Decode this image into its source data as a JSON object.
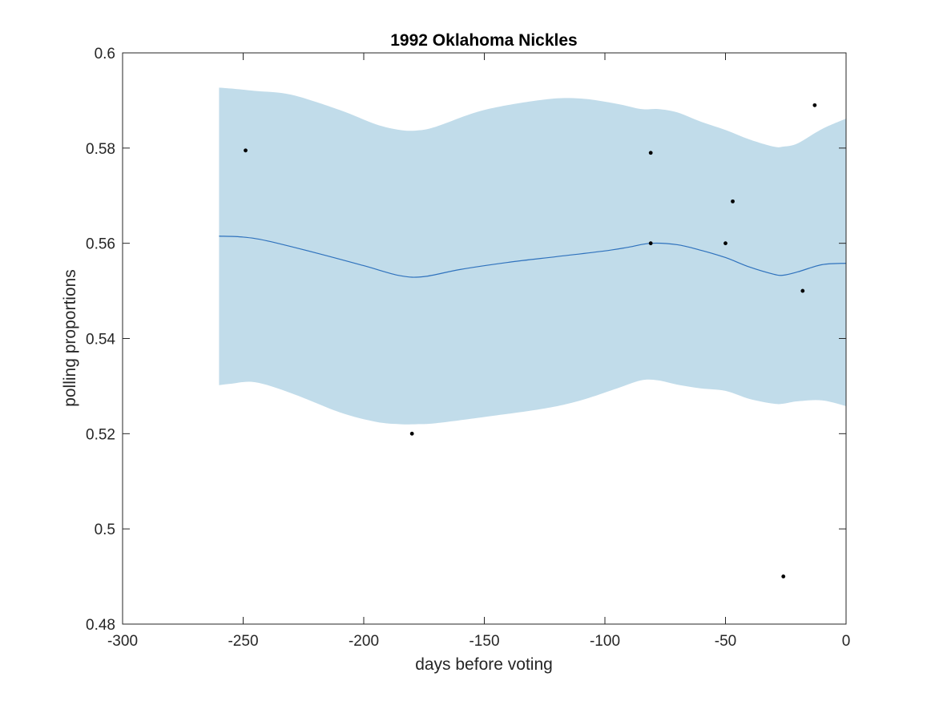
{
  "chart_data": {
    "type": "line",
    "title": "1992 Oklahoma Nickles",
    "xlabel": "days before voting",
    "ylabel": "polling proportions",
    "xlim": [
      -300,
      0
    ],
    "ylim": [
      0.48,
      0.6
    ],
    "xticks": [
      -300,
      -250,
      -200,
      -150,
      -100,
      -50,
      0
    ],
    "xtick_labels": [
      "-300",
      "-250",
      "-200",
      "-150",
      "-100",
      "-50",
      "0"
    ],
    "yticks": [
      0.48,
      0.5,
      0.52,
      0.54,
      0.56,
      0.58,
      0.6
    ],
    "ytick_labels": [
      "0.48",
      "0.5",
      "0.52",
      "0.54",
      "0.56",
      "0.58",
      "0.6"
    ],
    "grid": false,
    "colors": {
      "band": "#c1dcea",
      "line": "#2f72bd",
      "points": "#000000",
      "axes": "#262626"
    },
    "fit_line": {
      "x": [
        -260,
        -250,
        -240,
        -220,
        -200,
        -185,
        -175,
        -160,
        -140,
        -120,
        -100,
        -90,
        -81,
        -70,
        -60,
        -50,
        -40,
        -30,
        -26,
        -20,
        -10,
        0
      ],
      "y": [
        0.5615,
        0.5613,
        0.5605,
        0.558,
        0.5553,
        0.5532,
        0.553,
        0.5545,
        0.556,
        0.5572,
        0.5584,
        0.5592,
        0.56,
        0.5597,
        0.5585,
        0.557,
        0.555,
        0.5535,
        0.5533,
        0.554,
        0.5555,
        0.5558
      ]
    },
    "band": {
      "x": [
        -260,
        -255,
        -245,
        -230,
        -210,
        -195,
        -185,
        -178,
        -170,
        -150,
        -125,
        -110,
        -95,
        -85,
        -78,
        -70,
        -60,
        -50,
        -40,
        -30,
        -26,
        -20,
        -10,
        0
      ],
      "upper": [
        0.5927,
        0.5925,
        0.592,
        0.5912,
        0.588,
        0.585,
        0.5838,
        0.5837,
        0.5845,
        0.588,
        0.5902,
        0.5904,
        0.5893,
        0.5882,
        0.5882,
        0.5875,
        0.5855,
        0.5838,
        0.5818,
        0.5803,
        0.5803,
        0.581,
        0.584,
        0.5862
      ],
      "lower": [
        0.5302,
        0.5305,
        0.5308,
        0.5285,
        0.5245,
        0.5225,
        0.522,
        0.522,
        0.5222,
        0.5235,
        0.5253,
        0.527,
        0.5295,
        0.5312,
        0.5312,
        0.5303,
        0.5295,
        0.529,
        0.5273,
        0.5263,
        0.5263,
        0.5268,
        0.527,
        0.5258
      ]
    },
    "points": [
      {
        "x": -249,
        "y": 0.5795
      },
      {
        "x": -180,
        "y": 0.52
      },
      {
        "x": -81,
        "y": 0.579
      },
      {
        "x": -81,
        "y": 0.56
      },
      {
        "x": -50,
        "y": 0.56
      },
      {
        "x": -47,
        "y": 0.5688
      },
      {
        "x": -26,
        "y": 0.49
      },
      {
        "x": -18,
        "y": 0.55
      },
      {
        "x": -13,
        "y": 0.589
      }
    ]
  }
}
